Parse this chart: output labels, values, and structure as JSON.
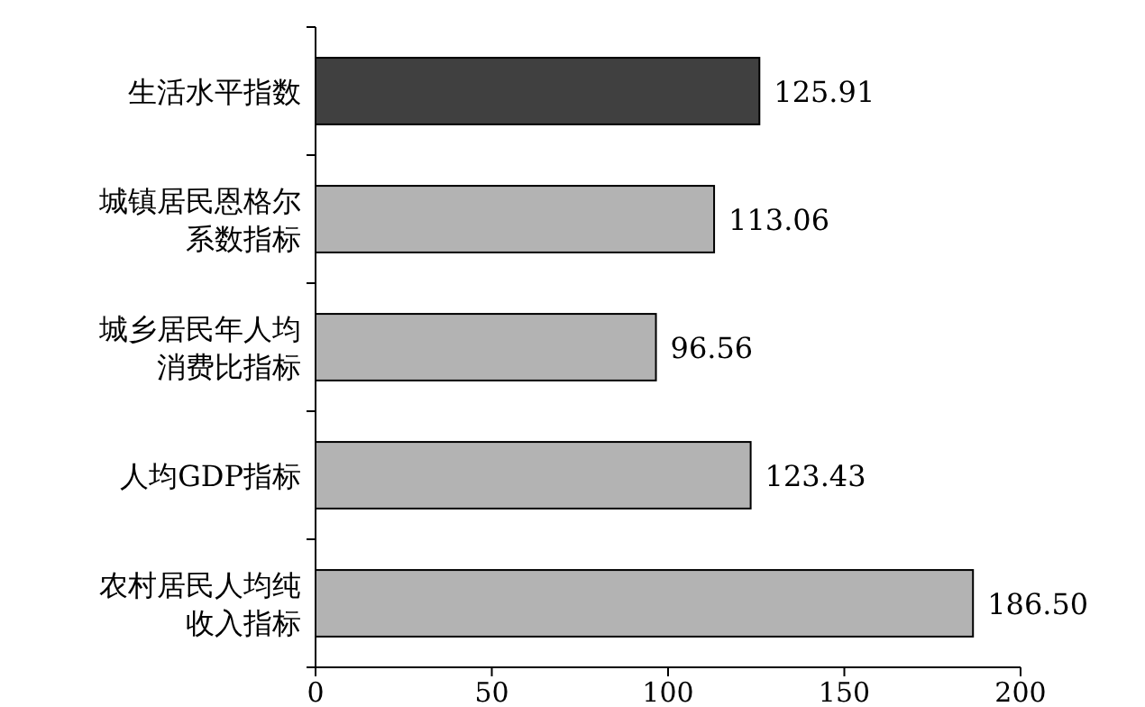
{
  "chart_data": {
    "type": "bar",
    "orientation": "horizontal",
    "categories": [
      "生活水平指数",
      "城镇居民恩格尔系数指标",
      "城乡居民年人均消费比指标",
      "人均GDP指标",
      "农村居民人均纯收入指标"
    ],
    "values": [
      125.91,
      113.06,
      96.56,
      123.43,
      186.5
    ],
    "value_labels": [
      "125.91",
      "113.06",
      "96.56",
      "123.43",
      "186.50"
    ],
    "colors": [
      "#404040",
      "#b3b3b3",
      "#b3b3b3",
      "#b3b3b3",
      "#b3b3b3"
    ],
    "xlim": [
      0,
      200
    ],
    "xticks": [
      0,
      50,
      100,
      150,
      200
    ],
    "grid": false
  }
}
